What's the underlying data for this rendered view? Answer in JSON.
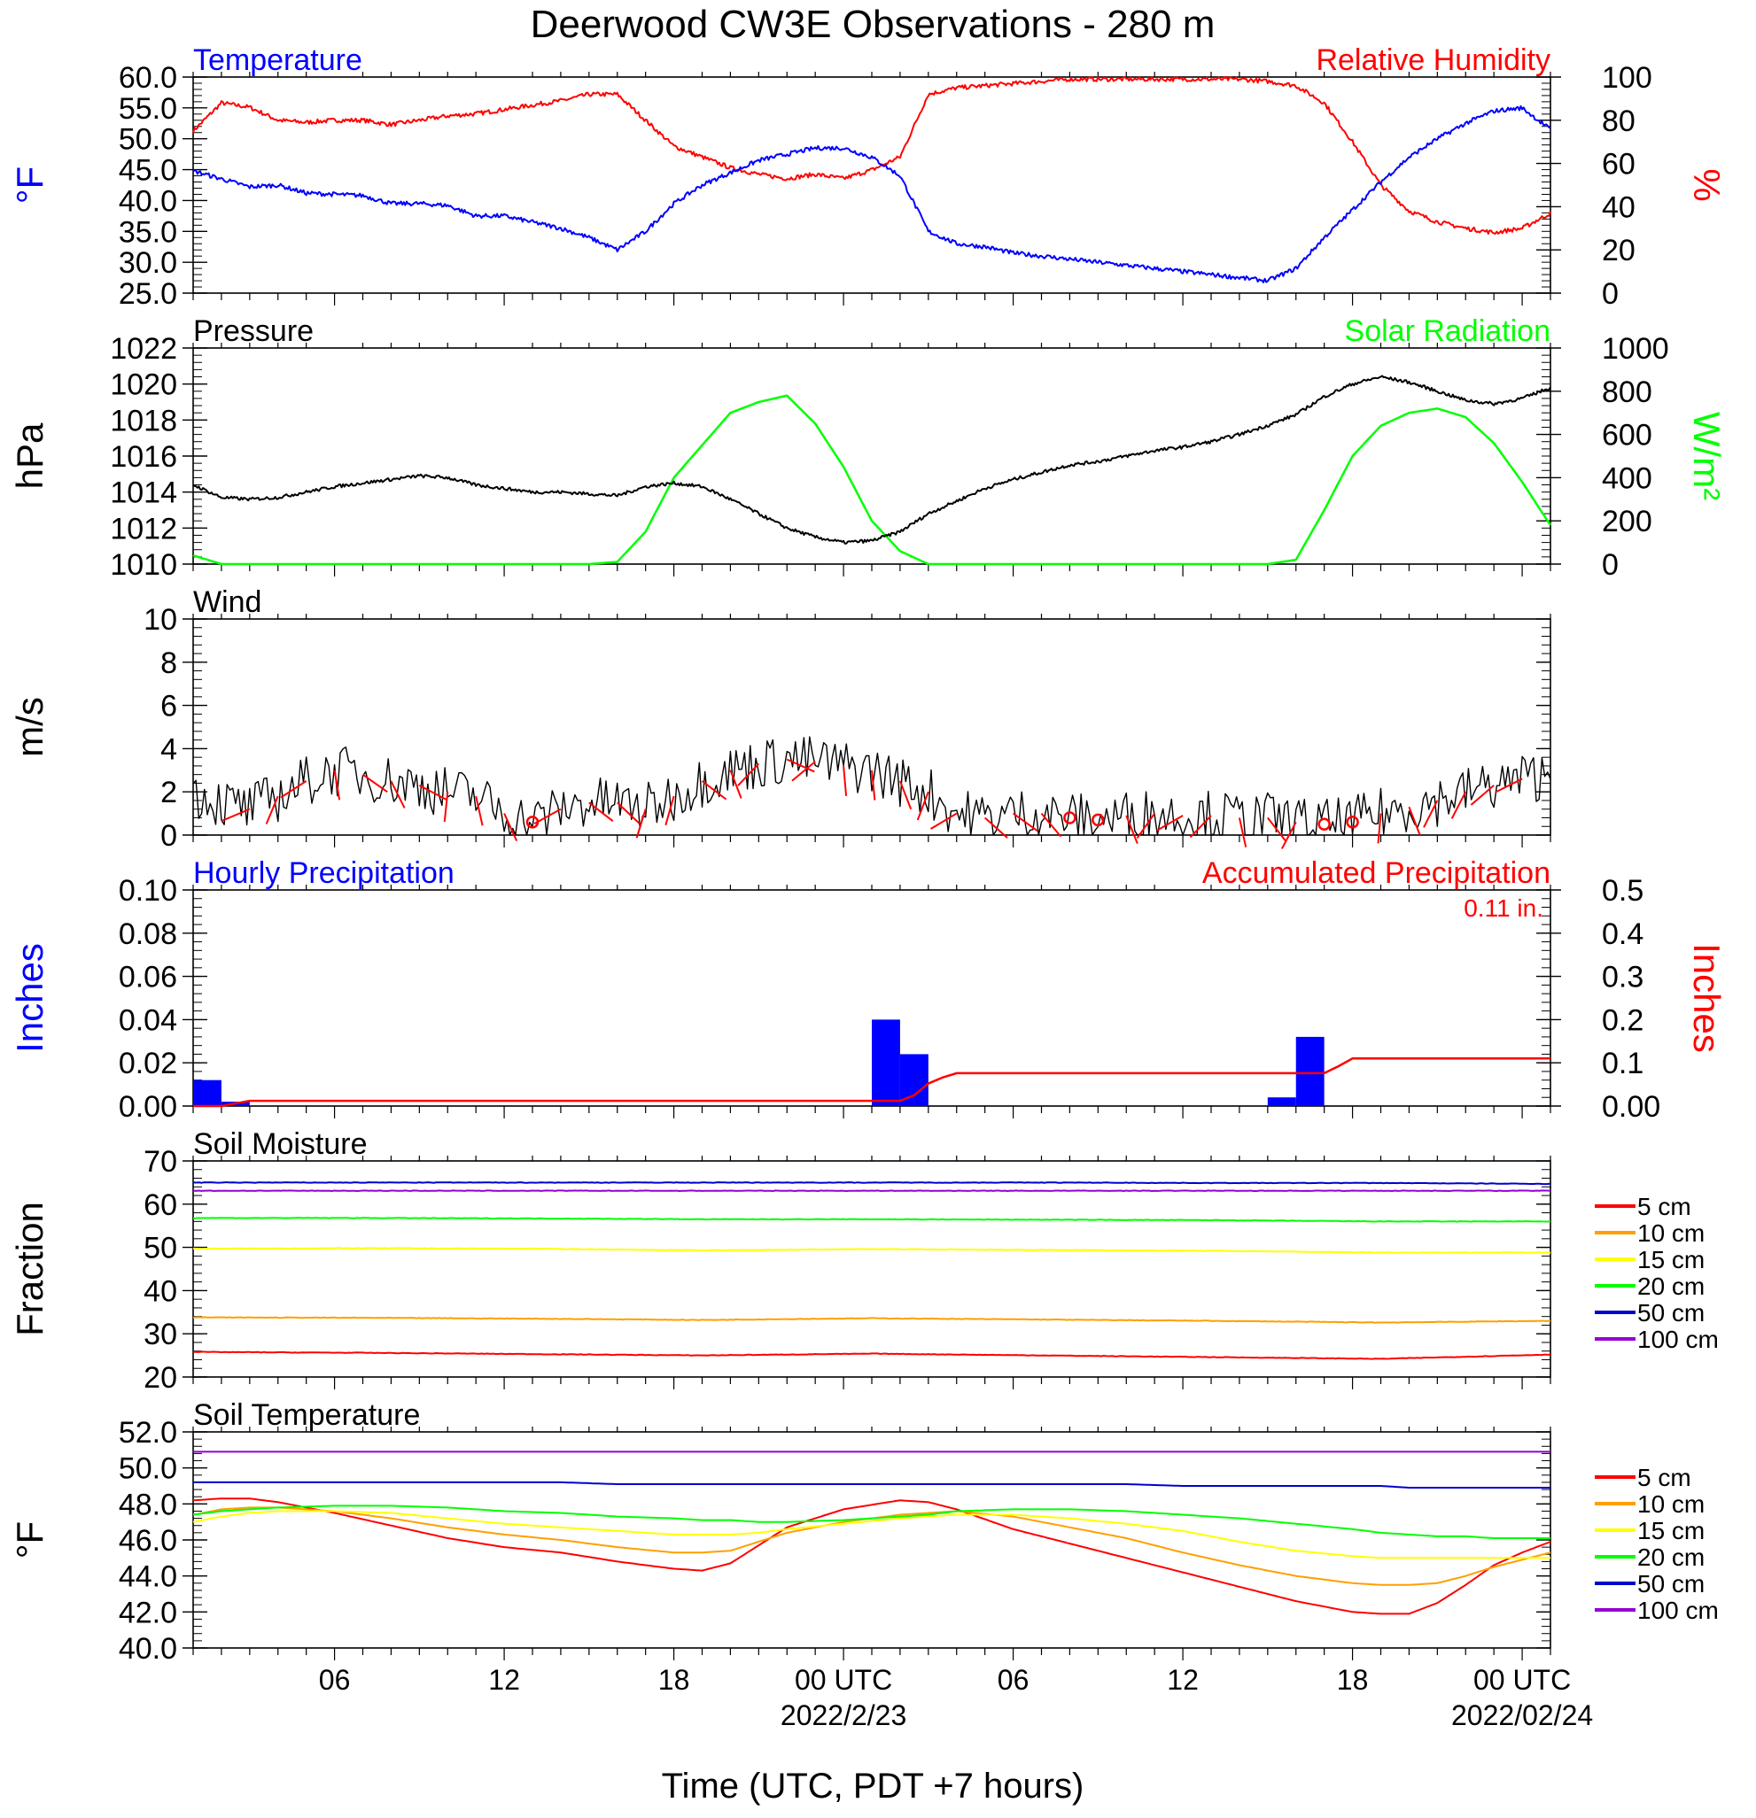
{
  "title": "Deerwood CW3E Observations - 280 m",
  "xaxis": {
    "ticks": [
      {
        "label": "06",
        "h": 6
      },
      {
        "label": "12",
        "h": 12
      },
      {
        "label": "18",
        "h": 18
      },
      {
        "label": "00 UTC",
        "h": 24
      },
      {
        "label": "06",
        "h": 30
      },
      {
        "label": "12",
        "h": 36
      },
      {
        "label": "18",
        "h": 42
      },
      {
        "label": "00 UTC",
        "h": 48
      }
    ],
    "dates": [
      {
        "label": "2022/2/23",
        "h": 24
      },
      {
        "label": "2022/02/24",
        "h": 48
      }
    ],
    "label": "Time (UTC, PDT +7 hours)",
    "start_hour": 1,
    "end_hour": 49
  },
  "colors": {
    "blue": "#0000ff",
    "red": "#ff0000",
    "green": "#00ff00",
    "black": "#000000",
    "orange": "#ff9f00",
    "yellow": "#ffff00",
    "soil_blue": "#0000cc",
    "purple": "#9400d3"
  },
  "panels": {
    "temp_rh": {
      "left_title": "Temperature",
      "right_title": "Relative Humidity",
      "left_unit": "°F",
      "right_unit": "%",
      "left_ticks": [
        "25.0",
        "30.0",
        "35.0",
        "40.0",
        "45.0",
        "50.0",
        "55.0",
        "60.0"
      ],
      "right_ticks": [
        "0",
        "20",
        "40",
        "60",
        "80",
        "100"
      ]
    },
    "pressure_solar": {
      "left_title": "Pressure",
      "right_title": "Solar Radiation",
      "left_unit": "hPa",
      "right_unit": "W/m²",
      "left_ticks": [
        "1010",
        "1012",
        "1014",
        "1016",
        "1018",
        "1020",
        "1022"
      ],
      "right_ticks": [
        "0",
        "200",
        "400",
        "600",
        "800",
        "1000"
      ]
    },
    "wind": {
      "left_title": "Wind",
      "left_unit": "m/s",
      "left_ticks": [
        "0",
        "2",
        "4",
        "6",
        "8",
        "10"
      ]
    },
    "precip": {
      "left_title": "Hourly Precipitation",
      "right_title": "Accumulated Precipitation",
      "total_label": "0.11 in.",
      "left_unit": "Inches",
      "right_unit": "Inches",
      "left_ticks": [
        "0.00",
        "0.02",
        "0.04",
        "0.06",
        "0.08",
        "0.10"
      ],
      "right_ticks": [
        "0.00",
        "0.1",
        "0.2",
        "0.3",
        "0.4",
        "0.5"
      ]
    },
    "soil_moisture": {
      "left_title": "Soil Moisture",
      "left_unit": "Fraction",
      "left_ticks": [
        "20",
        "30",
        "40",
        "50",
        "60",
        "70"
      ],
      "legend": [
        "5 cm",
        "10 cm",
        "15 cm",
        "20 cm",
        "50 cm",
        "100 cm"
      ]
    },
    "soil_temp": {
      "left_title": "Soil Temperature",
      "left_unit": "°F",
      "left_ticks": [
        "40.0",
        "42.0",
        "44.0",
        "46.0",
        "48.0",
        "50.0",
        "52.0"
      ],
      "legend": [
        "5 cm",
        "10 cm",
        "15 cm",
        "20 cm",
        "50 cm",
        "100 cm"
      ]
    }
  },
  "chart_data": [
    {
      "type": "line",
      "title": "Temperature",
      "ylabel": "°F",
      "ylim": [
        25,
        60
      ],
      "x": [
        1,
        2,
        3,
        4,
        5,
        6,
        7,
        8,
        9,
        10,
        11,
        12,
        13,
        14,
        15,
        16,
        17,
        18,
        19,
        20,
        21,
        22,
        23,
        24,
        25,
        26,
        27,
        28,
        29,
        30,
        31,
        32,
        33,
        34,
        35,
        36,
        37,
        38,
        39,
        40,
        41,
        42,
        43,
        44,
        45,
        46,
        47,
        48,
        49
      ],
      "series": [
        {
          "name": "Temperature",
          "color": "blue",
          "values": [
            44.8,
            43.5,
            42.2,
            42.5,
            41.2,
            41.0,
            40.8,
            39.5,
            39.5,
            39.2,
            37.5,
            37.5,
            36.5,
            35.5,
            34.0,
            32.0,
            35.0,
            39.5,
            42.5,
            44.5,
            46.5,
            47.5,
            48.5,
            48.5,
            47.0,
            44.0,
            35.0,
            33.0,
            32.5,
            31.5,
            31.0,
            30.5,
            30.0,
            29.5,
            29.0,
            28.5,
            28.0,
            27.5,
            27.0,
            29.0,
            34.0,
            38.5,
            43.0,
            47.0,
            50.0,
            52.5,
            54.5,
            55.0,
            51.5
          ]
        }
      ]
    },
    {
      "type": "line",
      "title": "Relative Humidity",
      "ylabel": "%",
      "ylim": [
        0,
        100
      ],
      "x": [
        1,
        2,
        3,
        4,
        5,
        6,
        7,
        8,
        9,
        10,
        11,
        12,
        13,
        14,
        15,
        16,
        17,
        18,
        19,
        20,
        21,
        22,
        23,
        24,
        25,
        26,
        27,
        28,
        29,
        30,
        31,
        32,
        33,
        34,
        35,
        36,
        37,
        38,
        39,
        40,
        41,
        42,
        43,
        44,
        45,
        46,
        47,
        48,
        49
      ],
      "series": [
        {
          "name": "Relative Humidity",
          "color": "red",
          "values": [
            75,
            88,
            86,
            80,
            79,
            80,
            80,
            78,
            80,
            82,
            83,
            85,
            87,
            89,
            92,
            92,
            80,
            68,
            63,
            58,
            55,
            53,
            55,
            53,
            57,
            63,
            92,
            95,
            96,
            97,
            98,
            99,
            99,
            99,
            99,
            99,
            99,
            99,
            98,
            96,
            88,
            70,
            50,
            38,
            33,
            30,
            28,
            30,
            37
          ]
        }
      ]
    },
    {
      "type": "line",
      "title": "Pressure",
      "ylabel": "hPa",
      "ylim": [
        1010,
        1022
      ],
      "x": [
        1,
        2,
        3,
        4,
        5,
        6,
        7,
        8,
        9,
        10,
        11,
        12,
        13,
        14,
        15,
        16,
        17,
        18,
        19,
        20,
        21,
        22,
        23,
        24,
        25,
        26,
        27,
        28,
        29,
        30,
        31,
        32,
        33,
        34,
        35,
        36,
        37,
        38,
        39,
        40,
        41,
        42,
        43,
        44,
        45,
        46,
        47,
        48,
        49
      ],
      "series": [
        {
          "name": "Pressure",
          "color": "black",
          "values": [
            1014.4,
            1013.7,
            1013.6,
            1013.7,
            1014.0,
            1014.3,
            1014.5,
            1014.7,
            1014.9,
            1014.8,
            1014.4,
            1014.2,
            1014.0,
            1014.0,
            1013.9,
            1013.8,
            1014.3,
            1014.5,
            1014.3,
            1013.6,
            1012.8,
            1012.0,
            1011.5,
            1011.2,
            1011.3,
            1011.8,
            1012.8,
            1013.5,
            1014.2,
            1014.7,
            1015.1,
            1015.5,
            1015.7,
            1016.0,
            1016.3,
            1016.5,
            1016.8,
            1017.2,
            1017.7,
            1018.3,
            1019.3,
            1020.0,
            1020.4,
            1020.1,
            1019.6,
            1019.1,
            1018.9,
            1019.2,
            1019.8
          ]
        }
      ]
    },
    {
      "type": "line",
      "title": "Solar Radiation",
      "ylabel": "W/m²",
      "ylim": [
        0,
        1000
      ],
      "x": [
        1,
        2,
        3,
        4,
        5,
        6,
        7,
        8,
        9,
        10,
        11,
        12,
        13,
        14,
        15,
        16,
        17,
        18,
        19,
        20,
        21,
        22,
        23,
        24,
        25,
        26,
        27,
        28,
        29,
        30,
        31,
        32,
        33,
        34,
        35,
        36,
        37,
        38,
        39,
        40,
        41,
        42,
        43,
        44,
        45,
        46,
        47,
        48,
        49
      ],
      "series": [
        {
          "name": "Solar Radiation",
          "color": "green",
          "values": [
            40,
            0,
            0,
            0,
            0,
            0,
            0,
            0,
            0,
            0,
            0,
            0,
            0,
            0,
            0,
            10,
            150,
            400,
            550,
            700,
            750,
            780,
            650,
            450,
            200,
            60,
            0,
            0,
            0,
            0,
            0,
            0,
            0,
            0,
            0,
            0,
            0,
            0,
            0,
            20,
            250,
            500,
            640,
            700,
            720,
            680,
            560,
            380,
            180
          ]
        }
      ]
    },
    {
      "type": "line",
      "title": "Wind",
      "ylabel": "m/s",
      "ylim": [
        0,
        10
      ],
      "x": [
        1,
        2,
        3,
        4,
        5,
        6,
        7,
        8,
        9,
        10,
        11,
        12,
        13,
        14,
        15,
        16,
        17,
        18,
        19,
        20,
        21,
        22,
        23,
        24,
        25,
        26,
        27,
        28,
        29,
        30,
        31,
        32,
        33,
        34,
        35,
        36,
        37,
        38,
        39,
        40,
        41,
        42,
        43,
        44,
        45,
        46,
        47,
        48,
        49
      ],
      "series": [
        {
          "name": "Wind",
          "color": "black",
          "values": [
            2.0,
            1.5,
            1.2,
            1.8,
            2.5,
            3.0,
            2.8,
            2.5,
            2.3,
            2.0,
            1.8,
            1.0,
            0.6,
            1.2,
            1.5,
            1.5,
            1.2,
            1.8,
            2.5,
            3.0,
            3.3,
            3.5,
            3.4,
            3.2,
            3.0,
            2.5,
            2.0,
            1.0,
            0.8,
            1.0,
            1.0,
            0.8,
            0.7,
            0.9,
            1.0,
            0.9,
            0.9,
            0.8,
            0.8,
            0.6,
            0.5,
            0.6,
            1.0,
            1.3,
            1.6,
            2.0,
            2.3,
            2.6,
            2.8
          ]
        }
      ]
    },
    {
      "type": "bar",
      "title": "Hourly Precipitation",
      "ylabel": "Inches",
      "ylim": [
        0,
        0.1
      ],
      "x": [
        2,
        3,
        26,
        27,
        28,
        40,
        41,
        42
      ],
      "series": [
        {
          "name": "Hourly Precipitation",
          "color": "blue",
          "values": [
            0.012,
            0.002,
            0.04,
            0.024,
            0.0,
            0.004,
            0.032,
            0.0
          ]
        }
      ]
    },
    {
      "type": "line",
      "title": "Accumulated Precipitation",
      "ylabel": "Inches",
      "ylim": [
        0,
        0.5
      ],
      "annotation": "0.11 in.",
      "x": [
        1,
        2,
        3,
        4,
        26,
        26.5,
        27,
        27.5,
        28,
        40,
        41,
        41.5,
        42,
        49
      ],
      "series": [
        {
          "name": "Accumulated Precipitation",
          "color": "red",
          "values": [
            0.0,
            0.0,
            0.012,
            0.012,
            0.012,
            0.025,
            0.052,
            0.066,
            0.076,
            0.076,
            0.076,
            0.092,
            0.11,
            0.11
          ]
        }
      ]
    },
    {
      "type": "line",
      "title": "Soil Moisture",
      "ylabel": "Fraction",
      "ylim": [
        20,
        70
      ],
      "x": [
        1,
        7,
        13,
        19,
        25,
        31,
        37,
        43,
        49
      ],
      "series": [
        {
          "name": "5 cm",
          "color": "red",
          "values": [
            25.8,
            25.6,
            25.3,
            25.0,
            25.4,
            25.0,
            24.6,
            24.2,
            25.2
          ]
        },
        {
          "name": "10 cm",
          "color": "orange",
          "values": [
            33.8,
            33.7,
            33.5,
            33.2,
            33.6,
            33.3,
            33.0,
            32.6,
            33.0
          ]
        },
        {
          "name": "15 cm",
          "color": "yellow",
          "values": [
            49.7,
            49.8,
            49.7,
            49.3,
            49.6,
            49.4,
            49.2,
            48.8,
            48.8
          ]
        },
        {
          "name": "20 cm",
          "color": "green",
          "values": [
            56.8,
            56.8,
            56.7,
            56.5,
            56.5,
            56.4,
            56.3,
            56.0,
            56.0
          ]
        },
        {
          "name": "50 cm",
          "color": "soil_blue",
          "values": [
            65.0,
            65.0,
            65.0,
            65.0,
            65.0,
            65.0,
            64.9,
            64.9,
            64.7
          ]
        },
        {
          "name": "100 cm",
          "color": "purple",
          "values": [
            63.1,
            63.1,
            63.1,
            63.1,
            63.1,
            63.1,
            63.1,
            63.1,
            63.1
          ]
        }
      ]
    },
    {
      "type": "line",
      "title": "Soil Temperature",
      "ylabel": "°F",
      "ylim": [
        40,
        52
      ],
      "x": [
        1,
        2,
        3,
        4,
        6,
        8,
        10,
        12,
        14,
        16,
        18,
        19,
        20,
        21,
        22,
        24,
        26,
        27,
        28,
        30,
        32,
        34,
        36,
        38,
        40,
        42,
        43,
        44,
        45,
        46,
        47,
        48,
        49
      ],
      "series": [
        {
          "name": "5 cm",
          "color": "red",
          "values": [
            48.2,
            48.3,
            48.3,
            48.1,
            47.5,
            46.8,
            46.1,
            45.6,
            45.3,
            44.8,
            44.4,
            44.3,
            44.7,
            45.7,
            46.7,
            47.7,
            48.2,
            48.1,
            47.7,
            46.6,
            45.8,
            45.0,
            44.2,
            43.4,
            42.6,
            42.0,
            41.9,
            41.9,
            42.5,
            43.5,
            44.6,
            45.3,
            45.9
          ]
        },
        {
          "name": "10 cm",
          "color": "orange",
          "values": [
            47.4,
            47.7,
            47.8,
            47.8,
            47.6,
            47.2,
            46.7,
            46.3,
            46.0,
            45.6,
            45.3,
            45.3,
            45.4,
            45.9,
            46.4,
            47.0,
            47.4,
            47.5,
            47.6,
            47.3,
            46.7,
            46.1,
            45.3,
            44.6,
            44.0,
            43.6,
            43.5,
            43.5,
            43.6,
            44.0,
            44.5,
            44.9,
            45.3
          ]
        },
        {
          "name": "15 cm",
          "color": "yellow",
          "values": [
            47.0,
            47.3,
            47.5,
            47.6,
            47.6,
            47.5,
            47.2,
            46.9,
            46.7,
            46.5,
            46.3,
            46.3,
            46.3,
            46.4,
            46.6,
            46.9,
            47.2,
            47.3,
            47.4,
            47.4,
            47.2,
            46.9,
            46.5,
            45.9,
            45.4,
            45.1,
            45.0,
            45.0,
            45.0,
            45.0,
            45.0,
            45.0,
            45.0
          ]
        },
        {
          "name": "20 cm",
          "color": "green",
          "values": [
            47.4,
            47.6,
            47.7,
            47.8,
            47.9,
            47.9,
            47.8,
            47.6,
            47.5,
            47.3,
            47.2,
            47.1,
            47.1,
            47.0,
            47.0,
            47.1,
            47.3,
            47.4,
            47.6,
            47.7,
            47.7,
            47.6,
            47.4,
            47.2,
            46.9,
            46.6,
            46.4,
            46.3,
            46.2,
            46.2,
            46.1,
            46.1,
            46.1
          ]
        },
        {
          "name": "50 cm",
          "color": "soil_blue",
          "values": [
            49.2,
            49.2,
            49.2,
            49.2,
            49.2,
            49.2,
            49.2,
            49.2,
            49.2,
            49.1,
            49.1,
            49.1,
            49.1,
            49.1,
            49.1,
            49.1,
            49.1,
            49.1,
            49.1,
            49.1,
            49.1,
            49.1,
            49.0,
            49.0,
            49.0,
            49.0,
            49.0,
            48.9,
            48.9,
            48.9,
            48.9,
            48.9,
            48.9
          ]
        },
        {
          "name": "100 cm",
          "color": "purple",
          "values": [
            50.9,
            50.9,
            50.9,
            50.9,
            50.9,
            50.9,
            50.9,
            50.9,
            50.9,
            50.9,
            50.9,
            50.9,
            50.9,
            50.9,
            50.9,
            50.9,
            50.9,
            50.9,
            50.9,
            50.9,
            50.9,
            50.9,
            50.9,
            50.9,
            50.9,
            50.9,
            50.9,
            50.9,
            50.9,
            50.9,
            50.9,
            50.9,
            50.9
          ]
        }
      ]
    }
  ]
}
